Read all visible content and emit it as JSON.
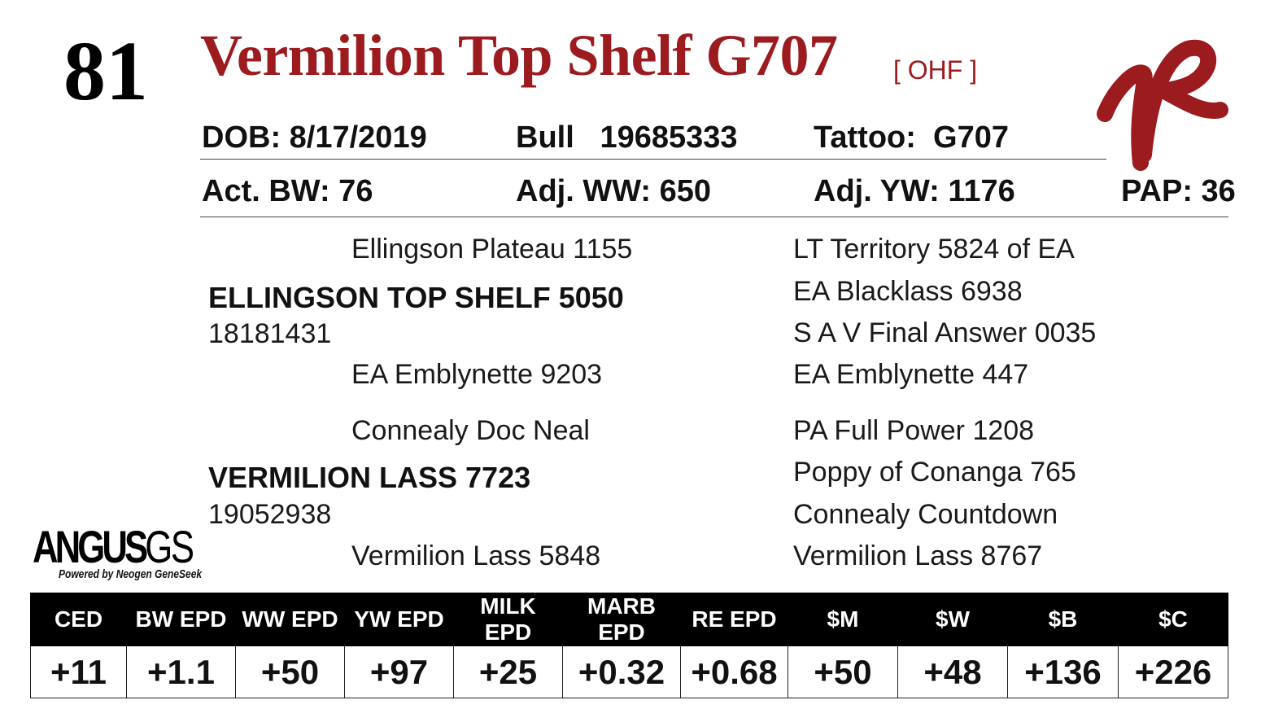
{
  "lot_number": "81",
  "animal_name": "Vermilion Top Shelf G707",
  "tag": "[ OHF ]",
  "brand_colors": {
    "title": "#9b1b1f",
    "brand_mark": "#9b1b1f"
  },
  "brand_mark_icon": "vr-brand-icon",
  "info_row1": {
    "dob": "DOB: 8/17/2019",
    "reg": "Bull   19685333",
    "tattoo": "Tattoo:  G707"
  },
  "info_row2": {
    "bw": "Act. BW: 76",
    "ww": "Adj. WW: 650",
    "yw": "Adj. YW: 1176",
    "pap": "PAP: 36"
  },
  "pedigree": {
    "sire": {
      "name": "ELLINGSON TOP SHELF 5050",
      "reg": "18181431"
    },
    "sire_sire": "Ellingson Plateau 1155",
    "sire_dam": "EA Emblynette 9203",
    "sire_sire_sire": "LT Territory 5824 of EA",
    "sire_sire_dam": "EA Blacklass 6938",
    "sire_dam_sire": "S A V Final Answer 0035",
    "sire_dam_dam": "EA Emblynette 447",
    "dam": {
      "name": "VERMILION LASS 7723",
      "reg": "19052938"
    },
    "dam_sire": "Connealy Doc Neal",
    "dam_dam": "Vermilion Lass 5848",
    "dam_sire_sire": "PA Full Power 1208",
    "dam_sire_dam": "Poppy of Conanga 765",
    "dam_dam_sire": "Connealy Countdown",
    "dam_dam_dam": "Vermilion Lass 8767"
  },
  "logo": {
    "main": "ANGUS",
    "suffix": "GS",
    "powered": "Powered by Neogen GeneSeek"
  },
  "epd": {
    "headers": [
      "CED",
      "BW EPD",
      "WW EPD",
      "YW EPD",
      "MILK EPD",
      "MARB EPD",
      "RE EPD",
      "$M",
      "$W",
      "$B",
      "$C"
    ],
    "values": [
      "+11",
      "+1.1",
      "+50",
      "+97",
      "+25",
      "+0.32",
      "+0.68",
      "+50",
      "+48",
      "+136",
      "+226"
    ]
  }
}
